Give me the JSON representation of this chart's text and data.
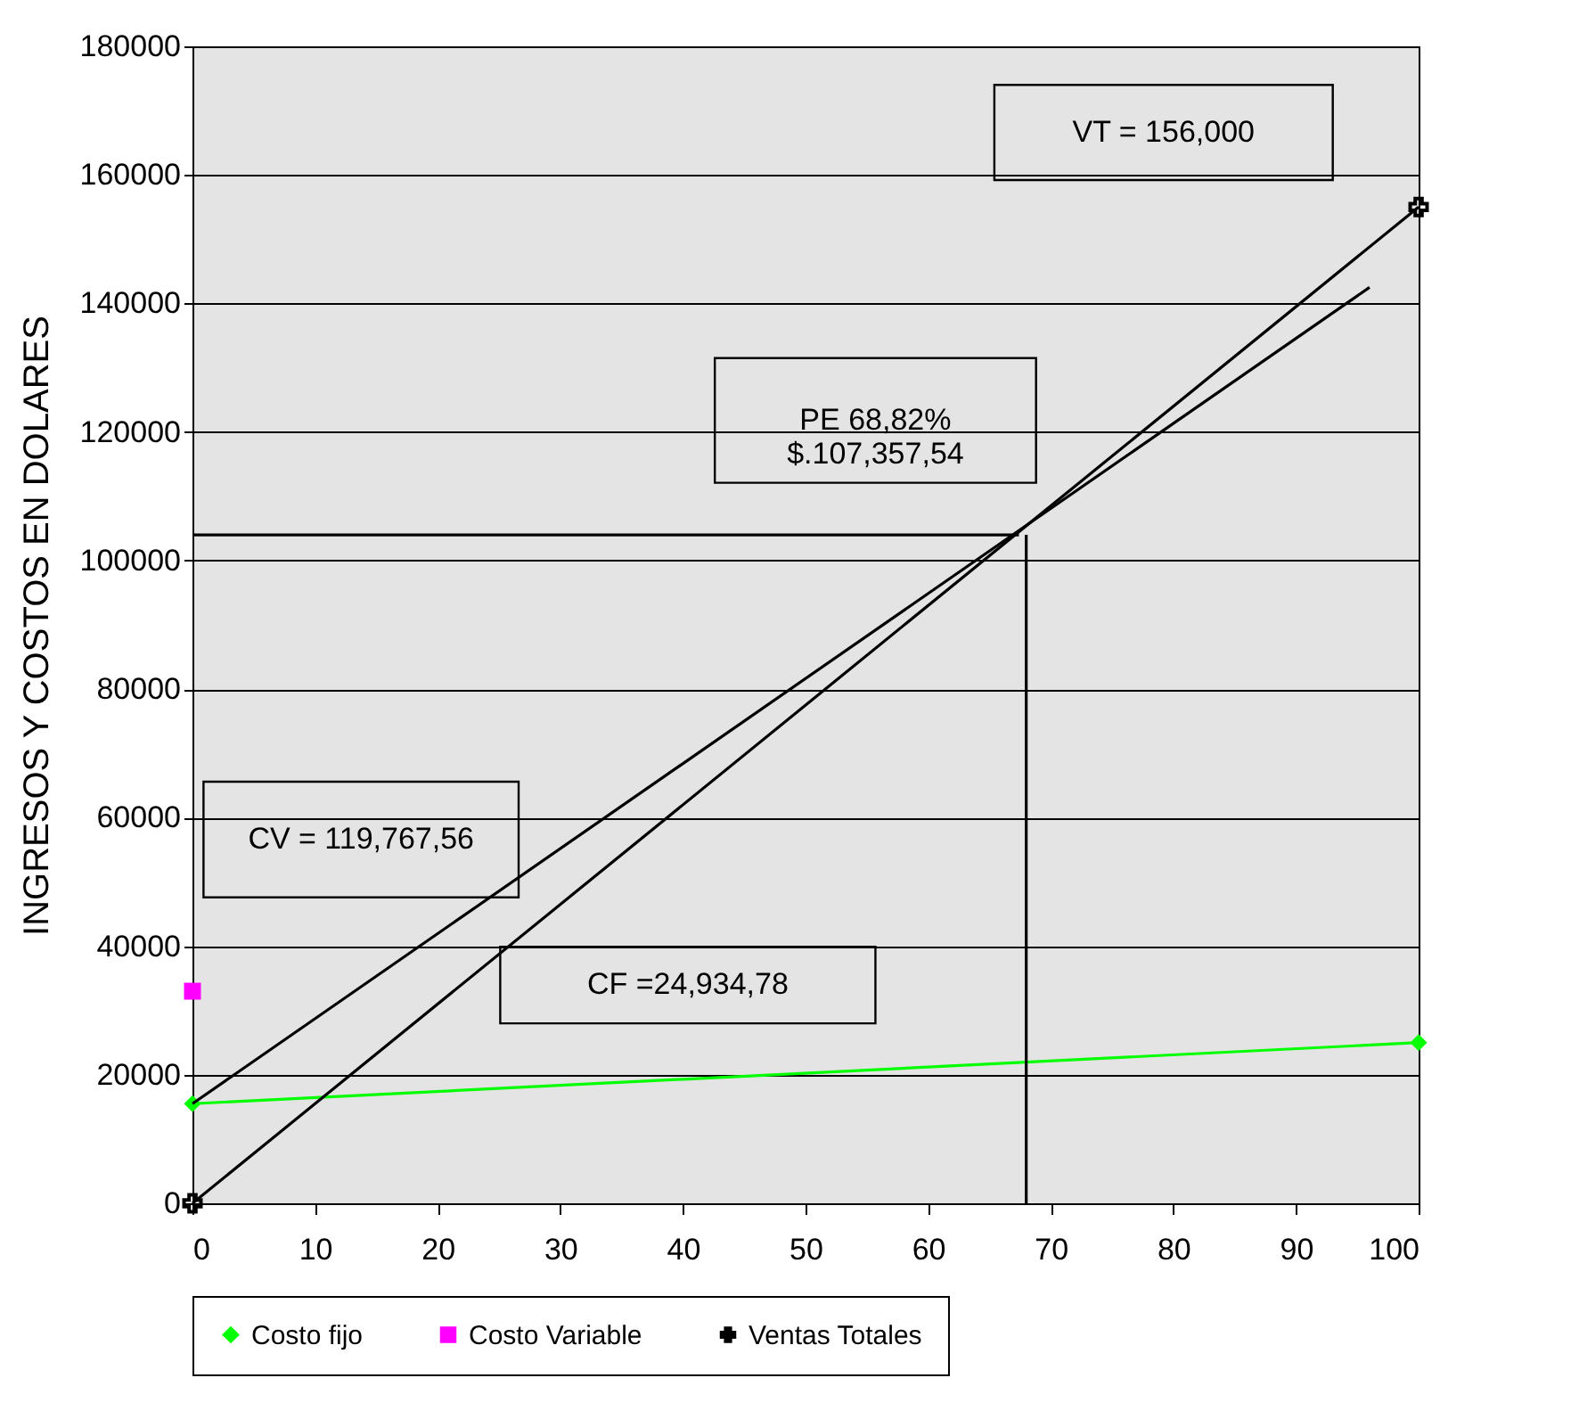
{
  "chart_data": {
    "type": "line",
    "ylabel": "INGRESOS Y COSTOS EN DOLARES",
    "xlim": [
      0,
      100
    ],
    "xticks": [
      0,
      10,
      20,
      30,
      40,
      50,
      60,
      70,
      80,
      90,
      100
    ],
    "ylim": [
      0,
      180000
    ],
    "yticks": [
      0,
      20000,
      40000,
      60000,
      80000,
      100000,
      120000,
      140000,
      160000,
      180000
    ],
    "grid": "y",
    "legend": "bottom",
    "series": [
      {
        "name": "Costo fijo",
        "color": "#00ff00",
        "marker": "diamond",
        "x": [
          0,
          100
        ],
        "values": [
          15500,
          25000
        ]
      },
      {
        "name": "Costo Variable",
        "type": "scatter",
        "color": "#ff00ff",
        "marker": "square",
        "x": [
          0
        ],
        "values": [
          33000
        ]
      },
      {
        "name": "Ventas Totales",
        "color": "#000000",
        "marker": "cross",
        "x": [
          0,
          100
        ],
        "values": [
          0,
          155000
        ]
      },
      {
        "color": "#000000",
        "marker": "none",
        "x": [
          0,
          96
        ],
        "values": [
          15500,
          142500
        ]
      },
      {
        "color": "#000000",
        "marker": "none",
        "x": [
          67.4,
          0
        ],
        "values": [
          104000,
          104000
        ]
      },
      {
        "color": "#000000",
        "marker": "none",
        "x": [
          68,
          68
        ],
        "values": [
          104000,
          0
        ]
      }
    ],
    "annotations": [
      "VT = 156,000",
      "PE 68,82%\n$.107,357,54",
      "CV = 119,767,56",
      "CF =24,934,78"
    ]
  }
}
